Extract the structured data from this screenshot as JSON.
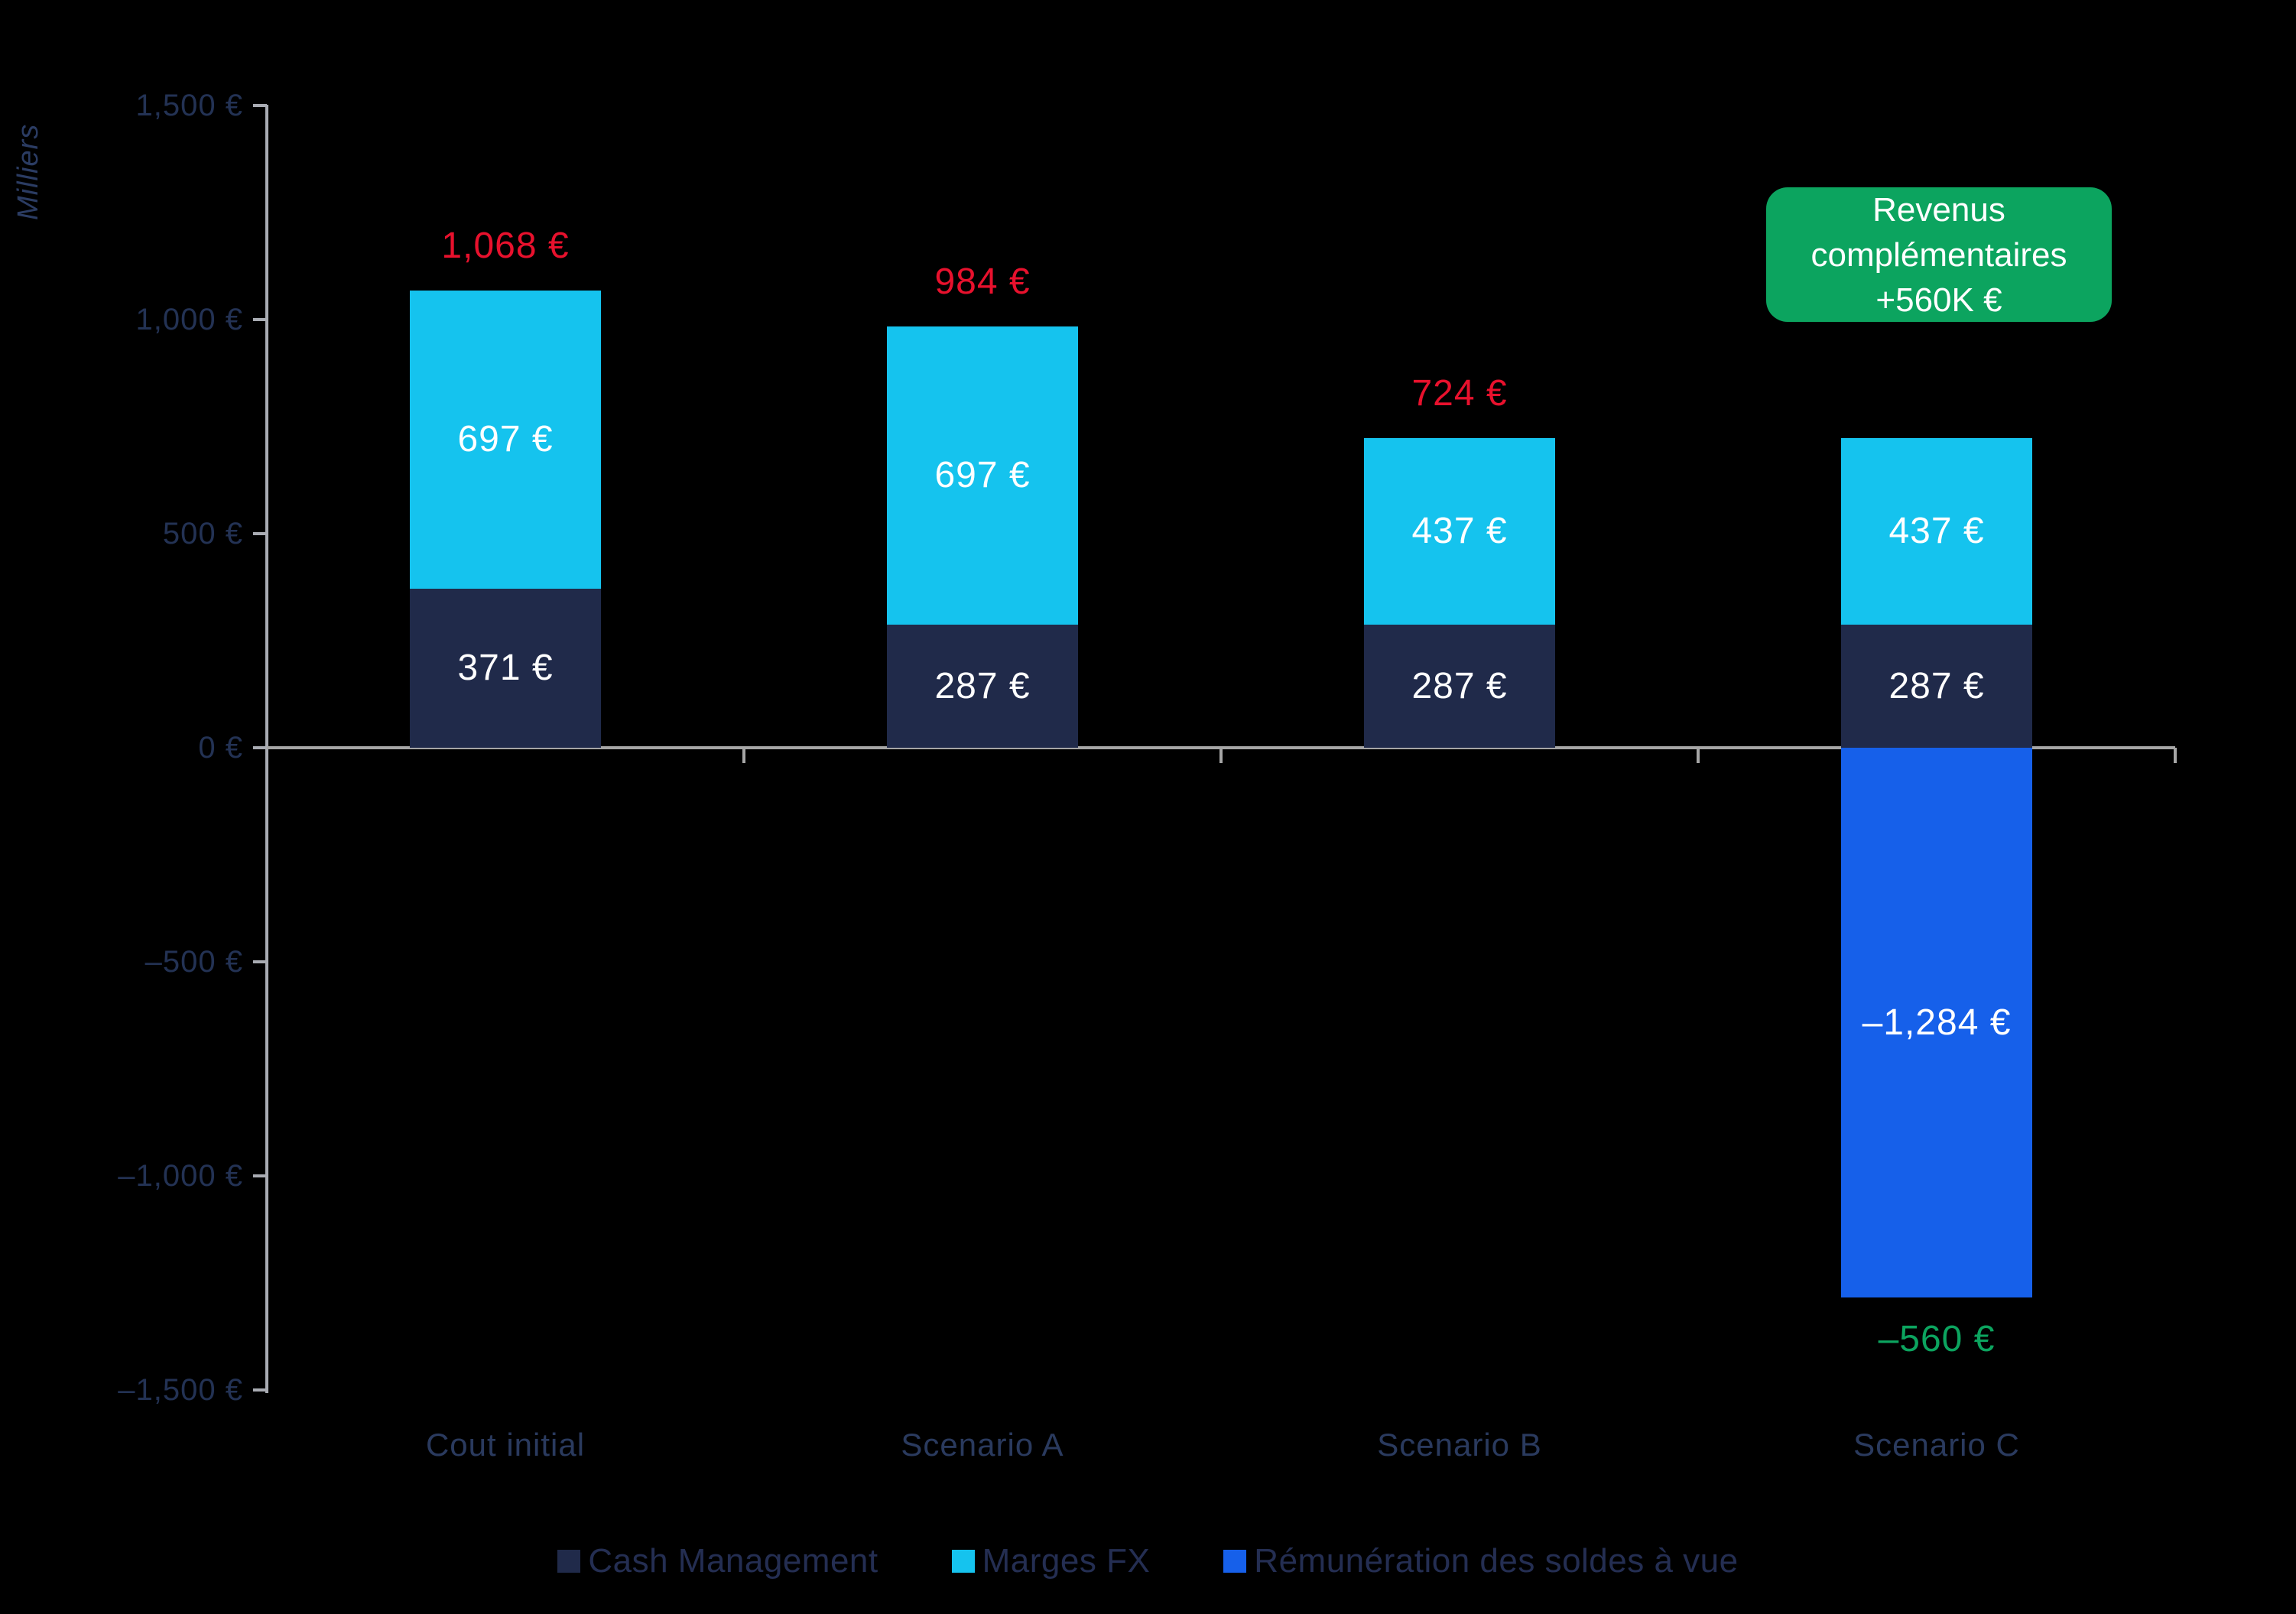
{
  "chart_data": {
    "type": "bar",
    "stacked": true,
    "title": "",
    "xlabel": "",
    "ylabel": "Milliers",
    "categories": [
      "Cout initial",
      "Scenario A",
      "Scenario B",
      "Scenario C"
    ],
    "series": [
      {
        "name": "Cash Management",
        "color": "#202A4A",
        "values": [
          371,
          287,
          287,
          287
        ]
      },
      {
        "name": "Marges FX",
        "color": "#15C3EE",
        "values": [
          697,
          697,
          437,
          437
        ]
      },
      {
        "name": "Rémunération des soldes à vue",
        "color": "#1660EA",
        "values": [
          0,
          0,
          0,
          -1284
        ]
      }
    ],
    "segment_labels": [
      [
        "371 €",
        "697 €",
        null
      ],
      [
        "287 €",
        "697 €",
        null
      ],
      [
        "287 €",
        "437 €",
        null
      ],
      [
        "287 €",
        "437 €",
        "–1,284 €"
      ]
    ],
    "totals": [
      {
        "value": 1068,
        "label": "1,068 €",
        "color": "#E8112D",
        "position": "above"
      },
      {
        "value": 984,
        "label": "984 €",
        "color": "#E8112D",
        "position": "above"
      },
      {
        "value": 724,
        "label": "724 €",
        "color": "#E8112D",
        "position": "above"
      },
      {
        "value": -560,
        "label": "–560 €",
        "color": "#0CA45F",
        "position": "below"
      }
    ],
    "ylim": [
      -1500,
      1500
    ],
    "y_axis_ticks": [
      {
        "label": "1,500 €",
        "value": 1500
      },
      {
        "label": "1,000 €",
        "value": 1000
      },
      {
        "label": "500 €",
        "value": 500
      },
      {
        "label": "0 €",
        "value": 0
      },
      {
        "label": "–500 €",
        "value": -500
      },
      {
        "label": "–1,000 €",
        "value": -1000
      },
      {
        "label": "–1,500 €",
        "value": -1500
      }
    ],
    "grid": false,
    "legend_position": "bottom"
  },
  "annotation_box": {
    "lines": [
      "Revenus",
      "complémentaires",
      "+560K €"
    ],
    "bg_color": "#0CA45F",
    "text_color": "#FFFFFF"
  },
  "colors": {
    "background": "#000000",
    "axis_line": "#A9ACB3",
    "zero_line": "#A6A6A6",
    "axis_text": "#233254",
    "category_text": "#2A3A5E",
    "legend_text": "#242E52",
    "bar_value_text": "#FFFFFF"
  }
}
